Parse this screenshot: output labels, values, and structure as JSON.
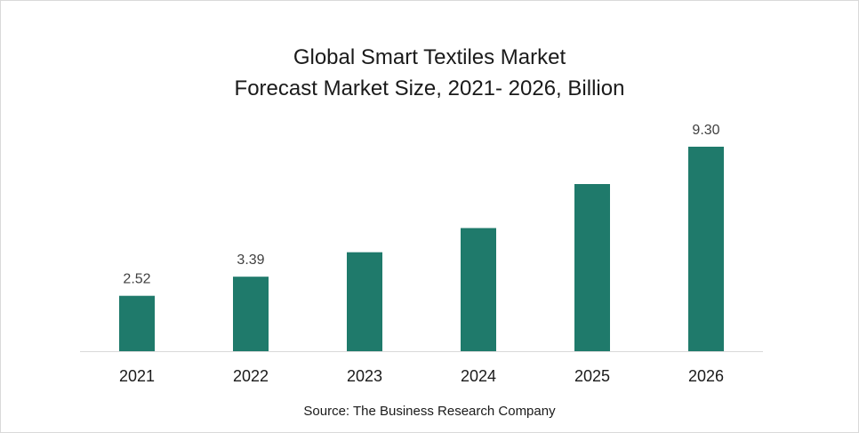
{
  "chart_data": {
    "type": "bar",
    "title": "Global Smart Textiles Market",
    "subtitle": "Forecast Market Size, 2021- 2026, Billion",
    "categories": [
      "2021",
      "2022",
      "2023",
      "2024",
      "2025",
      "2026"
    ],
    "values": [
      2.52,
      3.39,
      4.5,
      5.6,
      7.6,
      9.3
    ],
    "data_labels": [
      "2.52",
      "3.39",
      "",
      "",
      "",
      "9.30"
    ],
    "ylim": [
      0,
      9.3
    ],
    "grid": false,
    "legend": "none",
    "source": "Source: The Business Research Company",
    "colors": {
      "bar": "#1f7a6b",
      "axis": "#d9d9d9",
      "text": "#1a1a1a",
      "data_label": "#404040"
    }
  }
}
